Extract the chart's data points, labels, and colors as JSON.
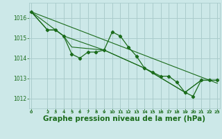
{
  "bg_color": "#cce8e8",
  "grid_color": "#aacccc",
  "line_color": "#1a6b1a",
  "marker_color": "#1a6b1a",
  "title": "Graphe pression niveau de la mer (hPa)",
  "title_fontsize": 7.5,
  "tick_color": "#1a6b1a",
  "ylim": [
    1011.5,
    1016.75
  ],
  "xlim": [
    -0.3,
    23.3
  ],
  "yticks": [
    1012,
    1013,
    1014,
    1015,
    1016
  ],
  "xticks": [
    0,
    2,
    3,
    4,
    5,
    6,
    7,
    8,
    9,
    10,
    11,
    12,
    13,
    14,
    15,
    16,
    17,
    18,
    19,
    20,
    21,
    22,
    23
  ],
  "series_main": {
    "x": [
      0,
      2,
      3,
      4,
      5,
      6,
      7,
      8,
      9,
      10,
      11,
      12,
      13,
      14,
      15,
      16,
      17,
      18,
      19,
      20,
      21,
      22,
      23
    ],
    "y": [
      1016.3,
      1015.4,
      1015.4,
      1015.1,
      1014.2,
      1014.0,
      1014.3,
      1014.3,
      1014.4,
      1015.3,
      1015.1,
      1014.55,
      1014.1,
      1013.5,
      1013.3,
      1013.1,
      1013.1,
      1012.8,
      1012.3,
      1012.1,
      1012.9,
      1012.9,
      1012.9
    ]
  },
  "series_smooth": [
    {
      "x": [
        0,
        2,
        3,
        4,
        5,
        9,
        14,
        19,
        21,
        22,
        23
      ],
      "y": [
        1016.3,
        1015.4,
        1015.4,
        1015.1,
        1014.55,
        1014.4,
        1013.5,
        1012.3,
        1012.9,
        1012.9,
        1012.9
      ]
    },
    {
      "x": [
        0,
        4,
        9,
        14,
        19,
        21,
        22,
        23
      ],
      "y": [
        1016.3,
        1015.1,
        1014.4,
        1013.5,
        1012.3,
        1012.9,
        1012.9,
        1012.9
      ]
    },
    {
      "x": [
        0,
        23
      ],
      "y": [
        1016.3,
        1012.75
      ]
    }
  ]
}
